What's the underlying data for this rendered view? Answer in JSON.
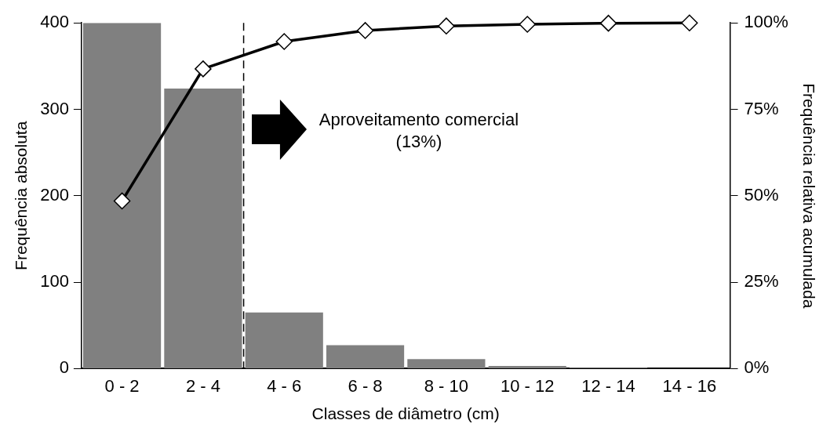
{
  "chart_data": {
    "type": "bar",
    "categories": [
      "0 - 2",
      "2 - 4",
      "4 - 6",
      "6 - 8",
      "8 - 10",
      "10 - 12",
      "12 - 14",
      "14 - 16"
    ],
    "xlabel": "Classes de diâmetro (cm)",
    "ylabel": "Frequência absoluta",
    "y2label": "Frequência relativa acumulada",
    "series": [
      {
        "color": "#808080",
        "values": [
          400,
          324,
          65,
          27,
          11,
          3,
          1,
          0
        ]
      },
      {
        "type": "line",
        "axis": "y2",
        "color": "#000000",
        "marker": "diamond",
        "values": [
          48.5,
          86.7,
          94.6,
          97.8,
          99.1,
          99.6,
          99.9,
          100
        ]
      }
    ],
    "ylim": [
      0,
      400
    ],
    "yticks": [
      0,
      100,
      200,
      300,
      400
    ],
    "y2lim": [
      0,
      100
    ],
    "y2ticks": [
      {
        "value": 0,
        "label": "0%"
      },
      {
        "value": 25,
        "label": "25%"
      },
      {
        "value": 50,
        "label": "50%"
      },
      {
        "value": 75,
        "label": "75%"
      },
      {
        "value": 100,
        "label": "100%"
      }
    ],
    "annotations": [
      "Aproveitamento comercial",
      "(13%)"
    ],
    "grid": false
  }
}
